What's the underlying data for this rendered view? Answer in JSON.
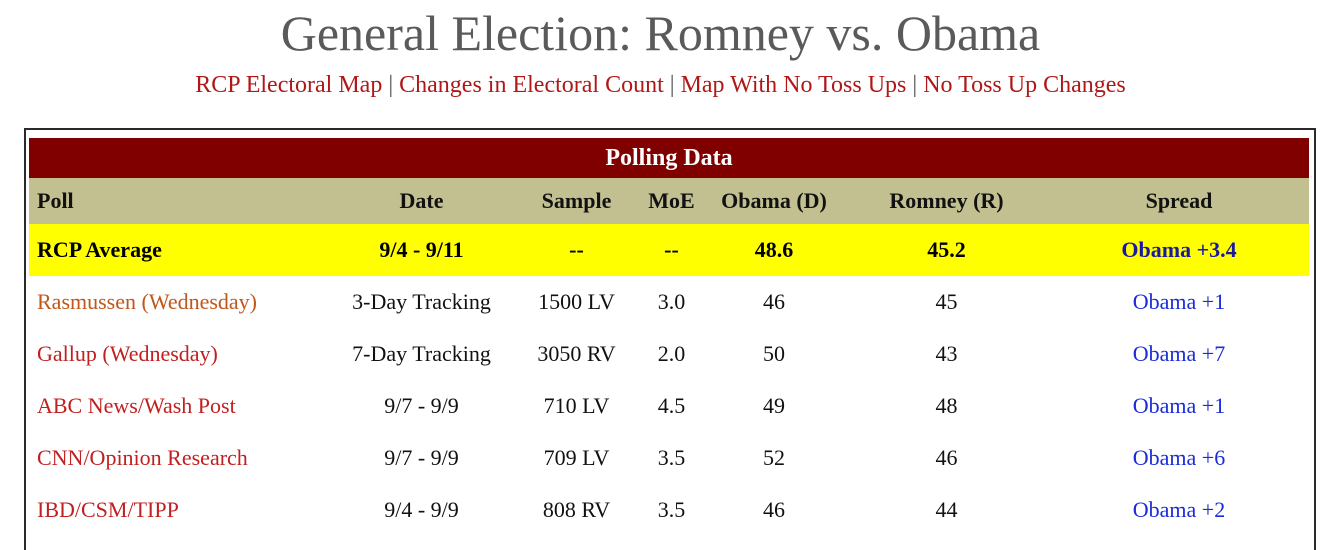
{
  "page": {
    "title": "General Election: Romney vs. Obama"
  },
  "nav_links": [
    {
      "label": "RCP Electoral Map"
    },
    {
      "label": "Changes in Electoral Count"
    },
    {
      "label": "Map With No Toss Ups"
    },
    {
      "label": "No Toss Up Changes"
    }
  ],
  "nav_separator": "|",
  "table": {
    "title": "Polling Data",
    "headers": {
      "poll": "Poll",
      "date": "Date",
      "sample": "Sample",
      "moe": "MoE",
      "obama": "Obama (D)",
      "romney": "Romney (R)",
      "spread": "Spread"
    },
    "average": {
      "poll": "RCP Average",
      "date": "9/4 - 9/11",
      "sample": "--",
      "moe": "--",
      "obama": "48.6",
      "romney": "45.2",
      "spread": "Obama +3.4"
    },
    "rows": [
      {
        "poll": "Rasmussen (Wednesday)",
        "date": "3-Day Tracking",
        "sample": "1500 LV",
        "moe": "3.0",
        "obama": "46",
        "romney": "45",
        "spread": "Obama +1"
      },
      {
        "poll": "Gallup (Wednesday)",
        "date": "7-Day Tracking",
        "sample": "3050 RV",
        "moe": "2.0",
        "obama": "50",
        "romney": "43",
        "spread": "Obama +7"
      },
      {
        "poll": "ABC News/Wash Post",
        "date": "9/7 - 9/9",
        "sample": "710 LV",
        "moe": "4.5",
        "obama": "49",
        "romney": "48",
        "spread": "Obama +1"
      },
      {
        "poll": "CNN/Opinion Research",
        "date": "9/7 - 9/9",
        "sample": "709 LV",
        "moe": "3.5",
        "obama": "52",
        "romney": "46",
        "spread": "Obama +6"
      },
      {
        "poll": "IBD/CSM/TIPP",
        "date": "9/4 - 9/9",
        "sample": "808 RV",
        "moe": "3.5",
        "obama": "46",
        "romney": "44",
        "spread": "Obama +2"
      }
    ]
  },
  "colors": {
    "title_bar": "#800000",
    "header_row": "#c2c090",
    "average_row": "#ffff00",
    "link": "#b01818",
    "spread": "#1a2cd8"
  }
}
